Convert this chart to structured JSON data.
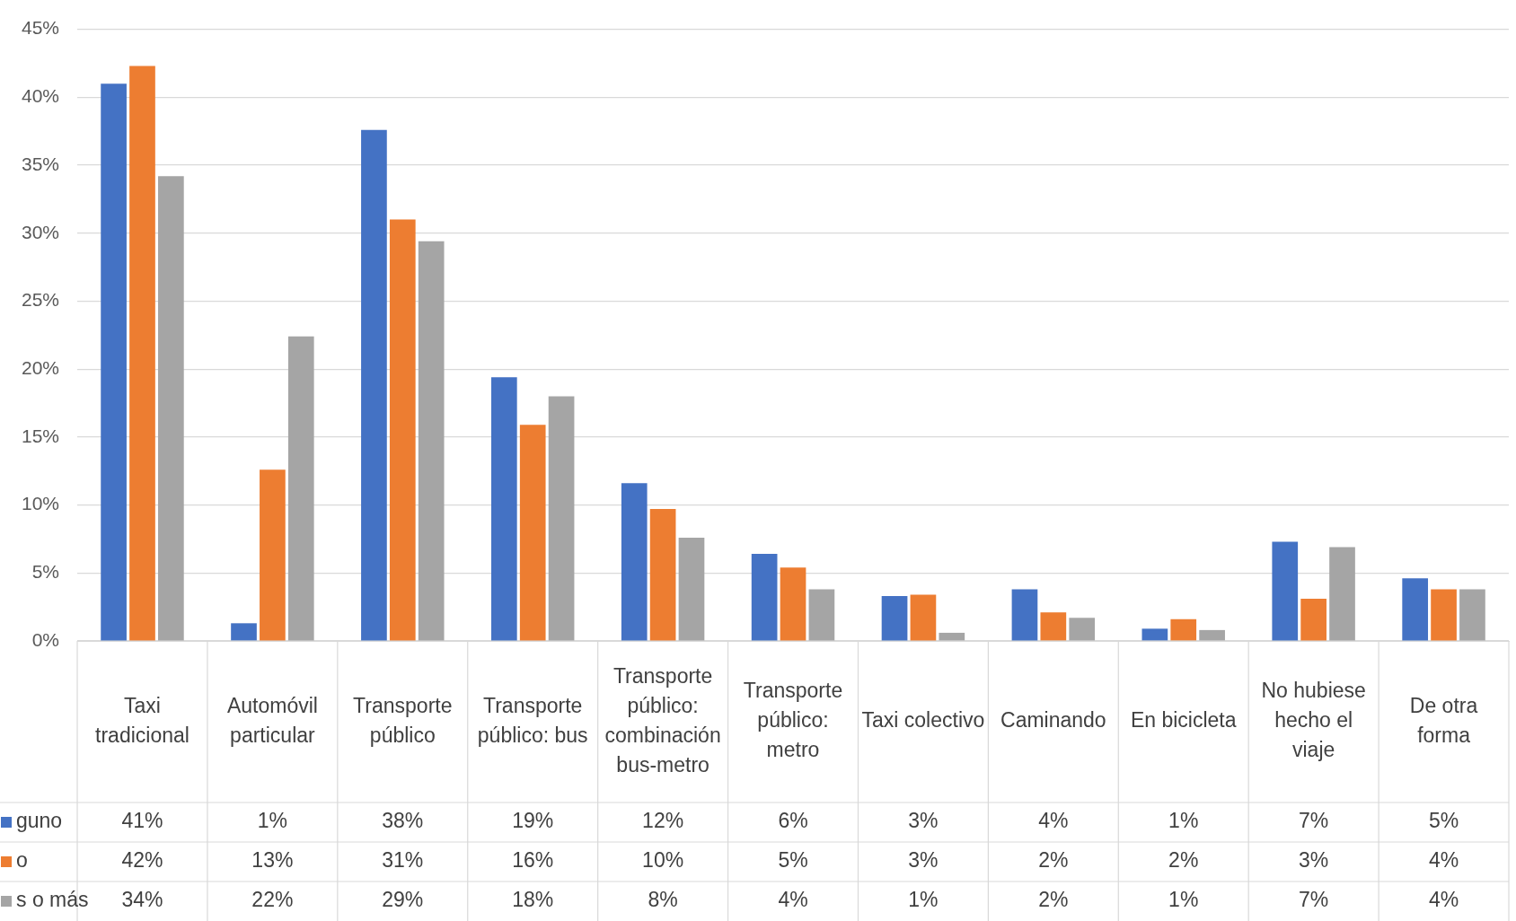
{
  "chart_data": {
    "type": "bar",
    "categories": [
      "Taxi tradicional",
      "Automóvil particular",
      "Transporte público",
      "Transporte público: bus",
      "Transporte público: combinación bus-metro",
      "Transporte público: metro",
      "Taxi colectivo",
      "Caminando",
      "En bicicleta",
      "No hubiese hecho el viaje",
      "De otra forma"
    ],
    "series": [
      {
        "name": "guno",
        "color": "#4472c4",
        "values": [
          41.0,
          1.3,
          37.6,
          19.4,
          11.6,
          6.4,
          3.3,
          3.8,
          0.9,
          7.3,
          4.6
        ],
        "value_labels": [
          "41%",
          "1%",
          "38%",
          "19%",
          "12%",
          "6%",
          "3%",
          "4%",
          "1%",
          "7%",
          "5%"
        ]
      },
      {
        "name": "o",
        "color": "#ed7d31",
        "values": [
          42.3,
          12.6,
          31.0,
          15.9,
          9.7,
          5.4,
          3.4,
          2.1,
          1.6,
          3.1,
          3.8
        ],
        "value_labels": [
          "42%",
          "13%",
          "31%",
          "16%",
          "10%",
          "5%",
          "3%",
          "2%",
          "2%",
          "3%",
          "4%"
        ]
      },
      {
        "name": "s o más",
        "color": "#a5a5a5",
        "values": [
          34.2,
          22.4,
          29.4,
          18.0,
          7.6,
          3.8,
          0.6,
          1.7,
          0.8,
          6.9,
          3.8
        ],
        "value_labels": [
          "34%",
          "22%",
          "29%",
          "18%",
          "8%",
          "4%",
          "1%",
          "2%",
          "1%",
          "7%",
          "4%"
        ]
      }
    ],
    "ylim": [
      0,
      45
    ],
    "yticks": [
      {
        "value": 0,
        "label": "0%"
      },
      {
        "value": 5,
        "label": "5%"
      },
      {
        "value": 10,
        "label": "10%"
      },
      {
        "value": 15,
        "label": "15%"
      },
      {
        "value": 20,
        "label": "20%"
      },
      {
        "value": 25,
        "label": "25%"
      },
      {
        "value": 30,
        "label": "30%"
      },
      {
        "value": 35,
        "label": "35%"
      },
      {
        "value": 40,
        "label": "40%"
      },
      {
        "value": 45,
        "label": "45%"
      }
    ],
    "grid": "y",
    "legend": "bottom left"
  }
}
